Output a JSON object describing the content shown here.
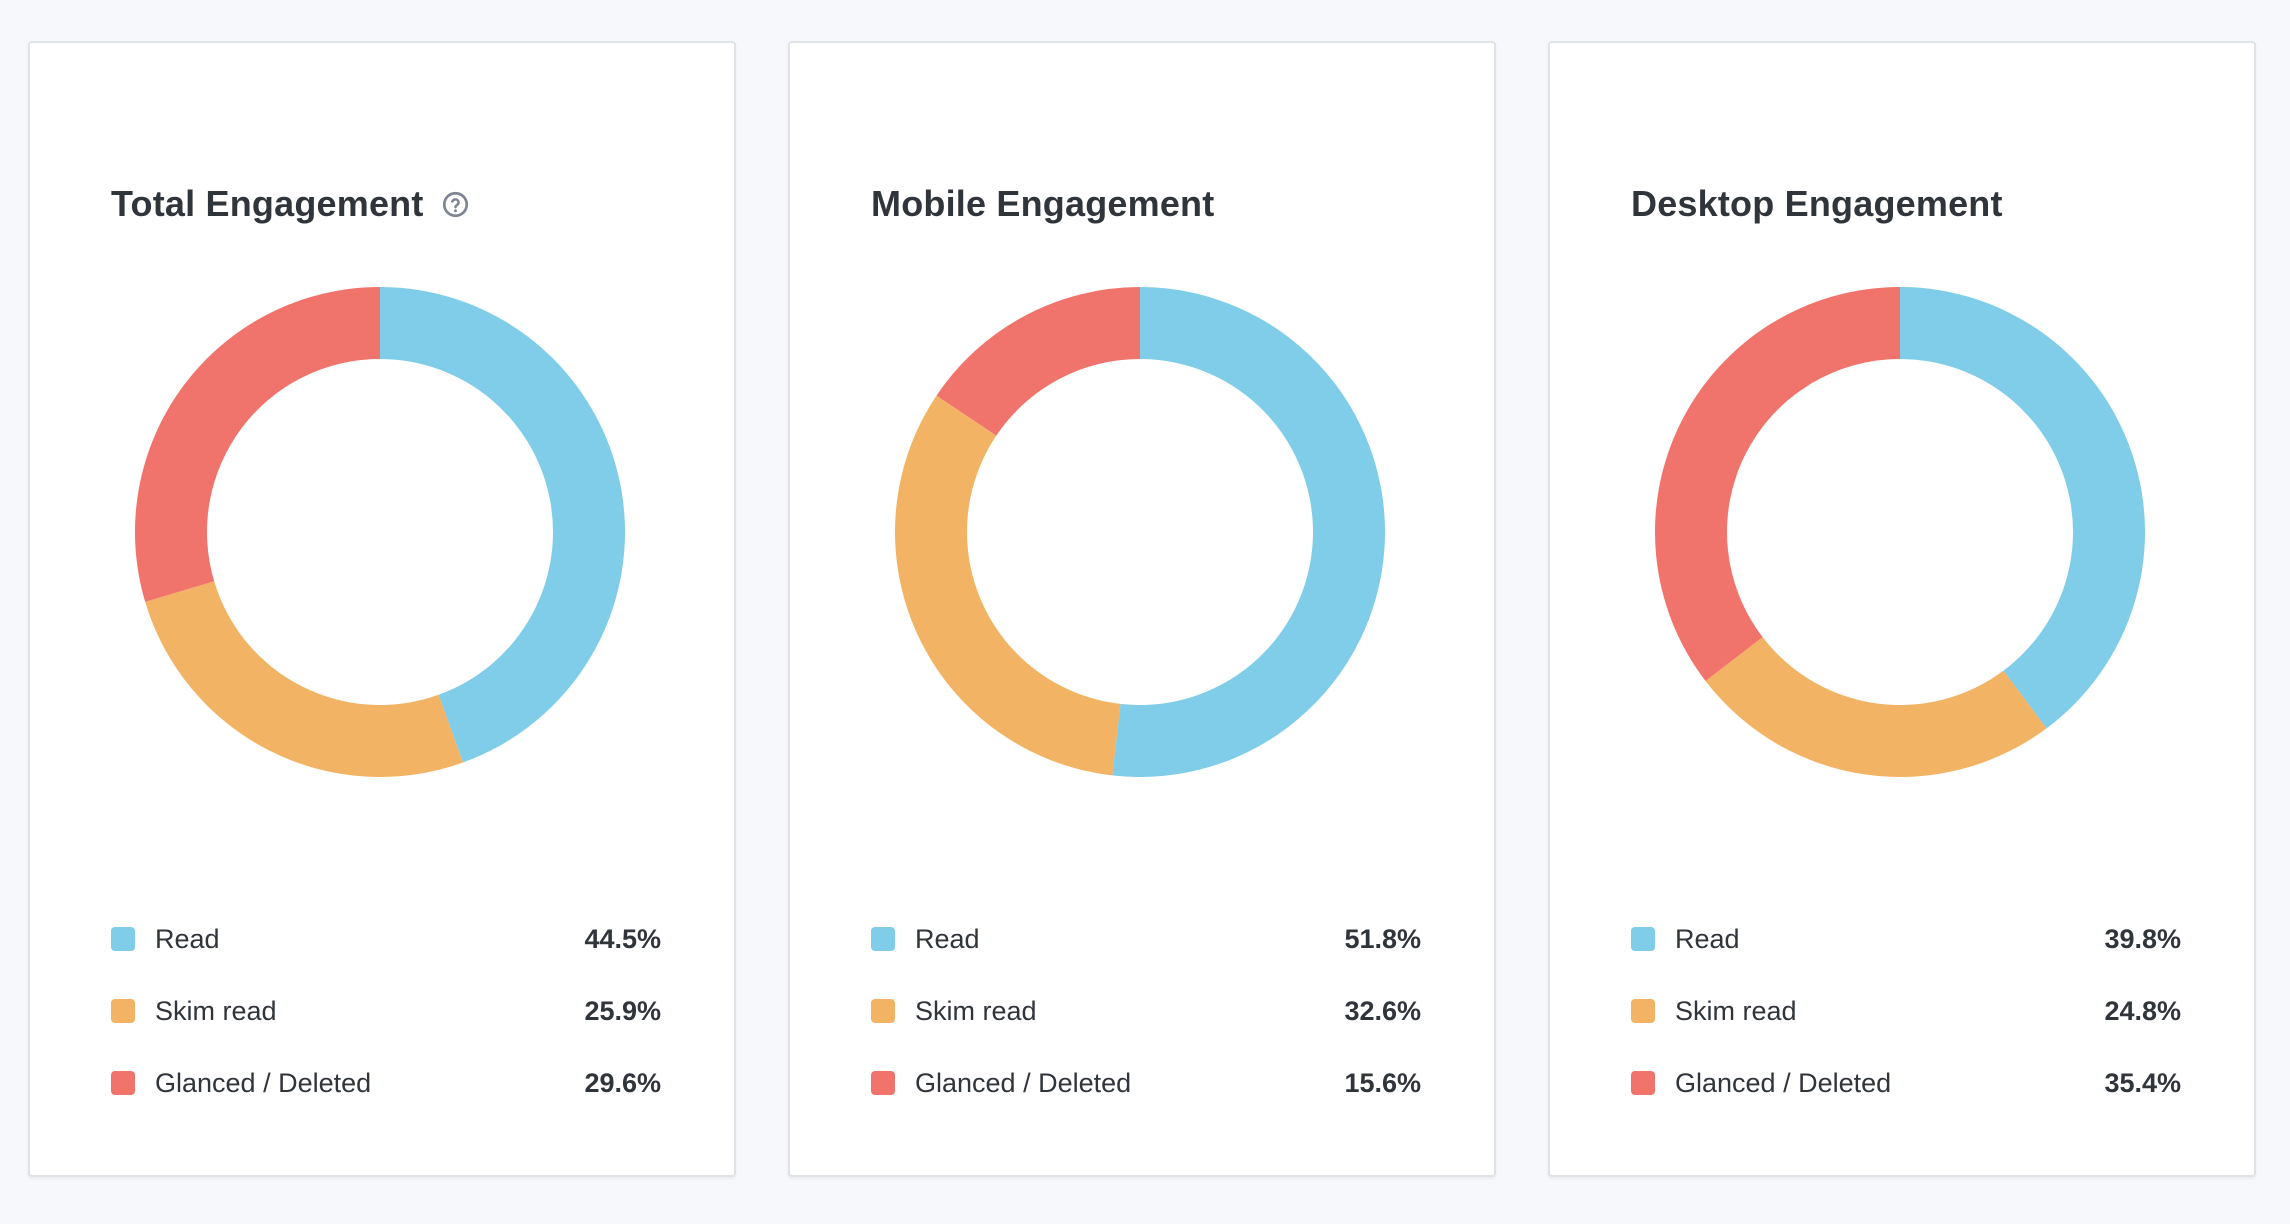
{
  "colors": {
    "read": "#7fcde8",
    "skim_read": "#f2b365",
    "glanced_deleted": "#f0736c"
  },
  "help_icon": "question-circle-icon",
  "chart_data": [
    {
      "type": "pie",
      "title": "Total Engagement",
      "categories": [
        "Read",
        "Skim read",
        "Glanced / Deleted"
      ],
      "values": [
        44.5,
        25.9,
        29.6
      ],
      "value_labels": [
        "44.5%",
        "25.9%",
        "29.6%"
      ],
      "style": "donut",
      "has_help_icon": true
    },
    {
      "type": "pie",
      "title": "Mobile Engagement",
      "categories": [
        "Read",
        "Skim read",
        "Glanced / Deleted"
      ],
      "values": [
        51.8,
        32.6,
        15.6
      ],
      "value_labels": [
        "51.8%",
        "32.6%",
        "15.6%"
      ],
      "style": "donut",
      "has_help_icon": false
    },
    {
      "type": "pie",
      "title": "Desktop Engagement",
      "categories": [
        "Read",
        "Skim read",
        "Glanced / Deleted"
      ],
      "values": [
        39.8,
        24.8,
        35.4
      ],
      "value_labels": [
        "39.8%",
        "24.8%",
        "35.4%"
      ],
      "style": "donut",
      "has_help_icon": false
    }
  ]
}
